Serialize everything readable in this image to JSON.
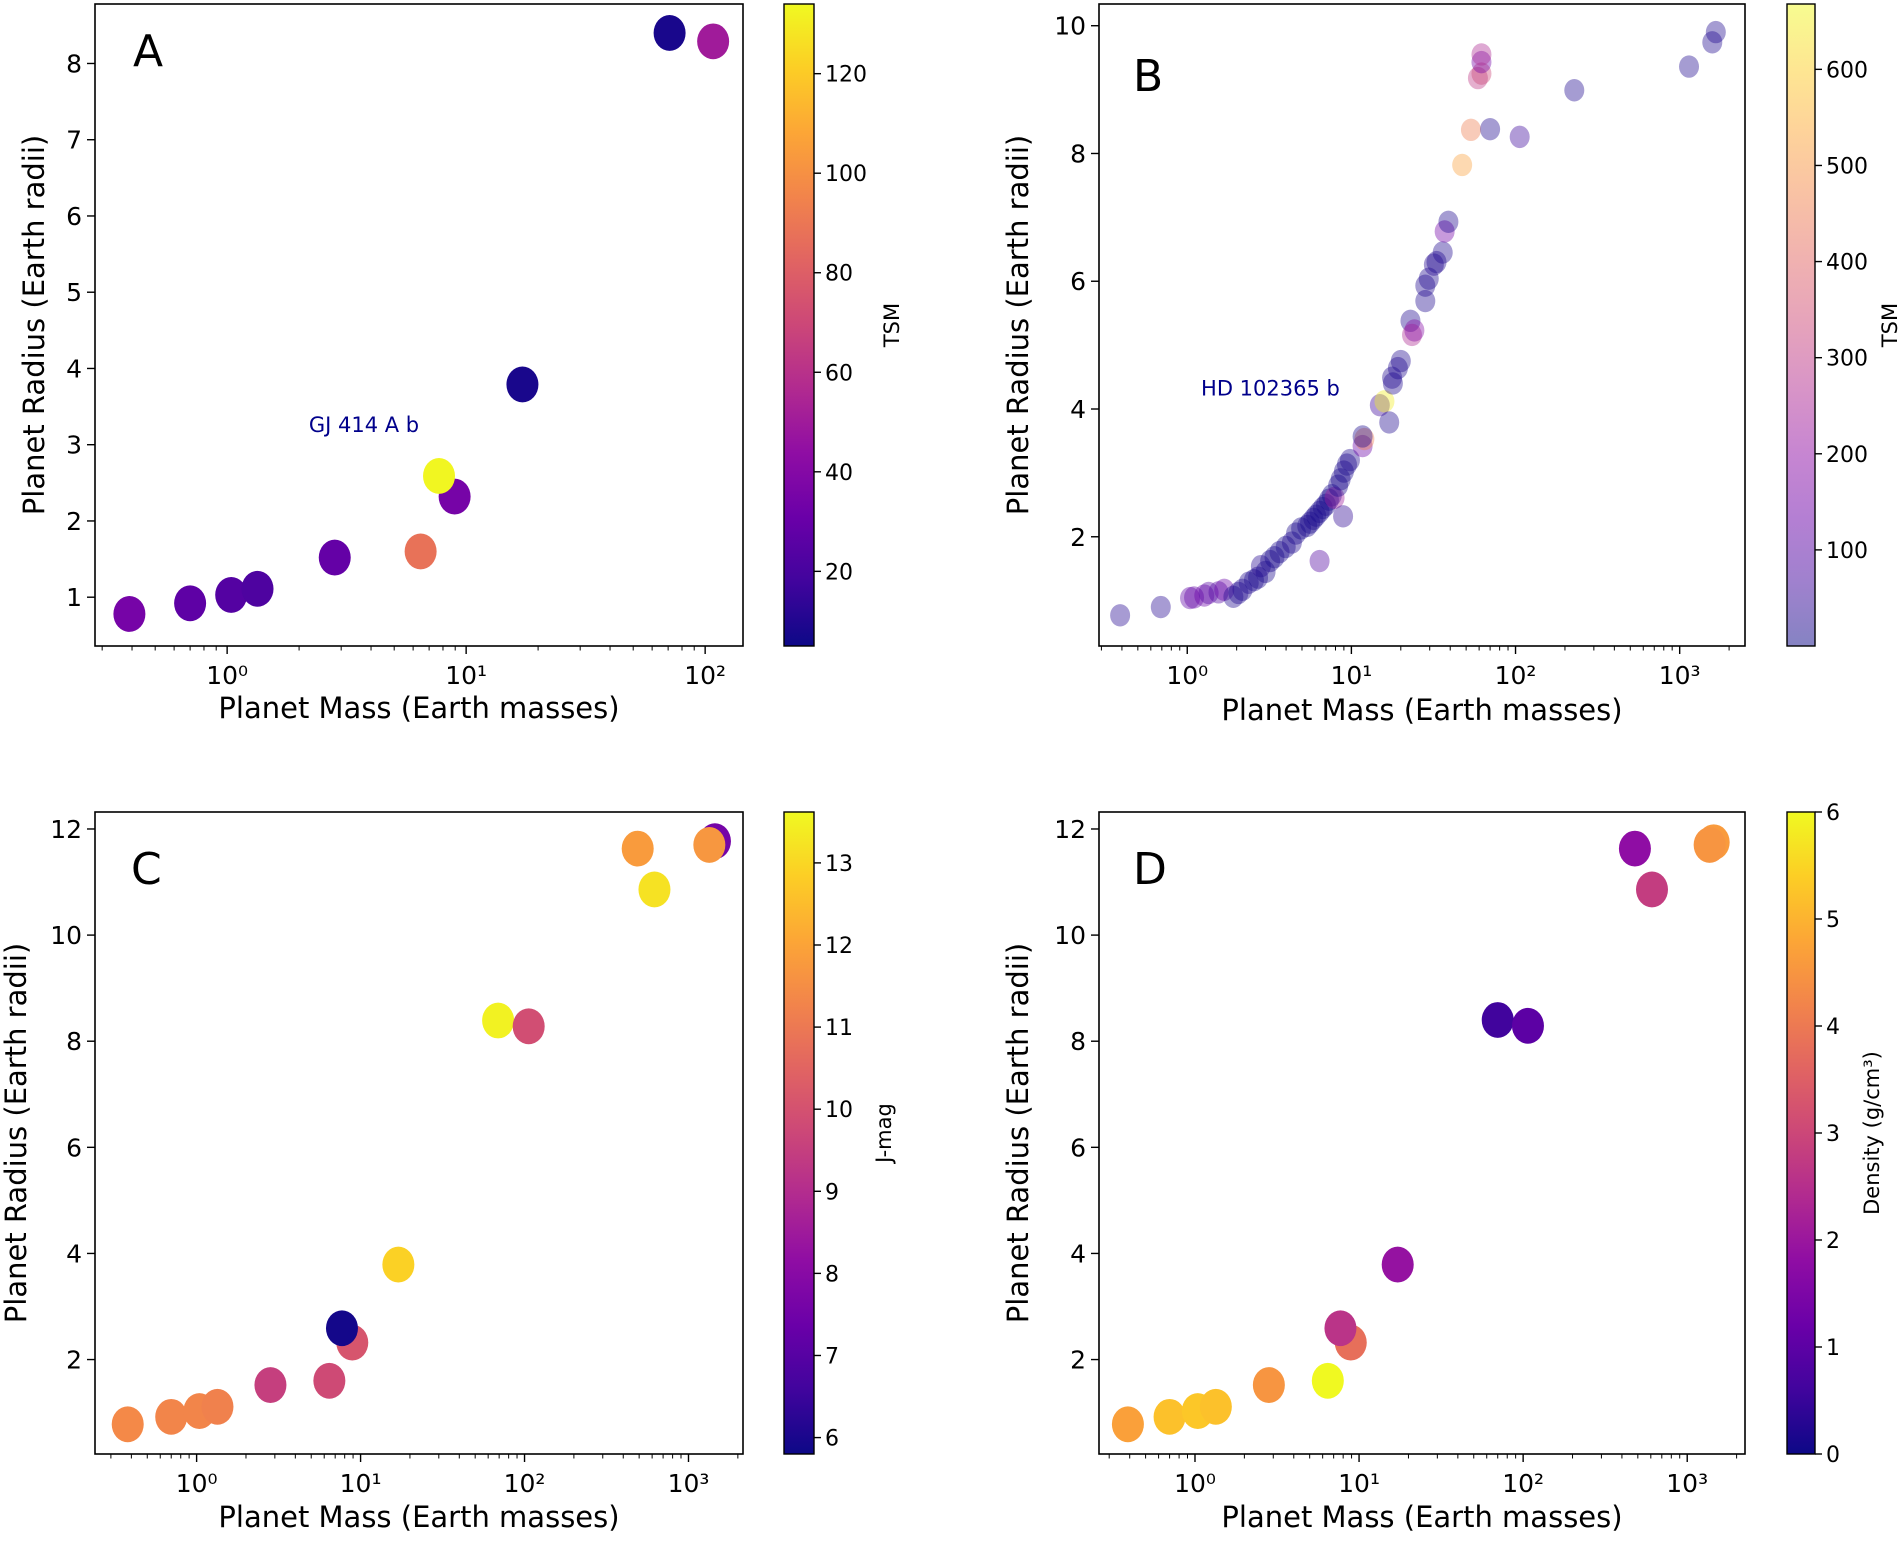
{
  "chart_data": [
    {
      "type": "scatter",
      "panel_label": "A",
      "xlabel": "Planet Mass (Earth masses)",
      "ylabel": "Planet Radius (Earth radii)",
      "xscale": "log",
      "xlim": [
        0.28,
        144
      ],
      "ylim": [
        0.36,
        8.78
      ],
      "xtick_values": [
        1,
        10,
        100
      ],
      "xtick_labels": [
        "10⁰",
        "10¹",
        "10²"
      ],
      "ytick_values": [
        1,
        2,
        3,
        4,
        5,
        6,
        7,
        8
      ],
      "ytick_labels": [
        "1",
        "2",
        "3",
        "4",
        "5",
        "6",
        "7",
        "8"
      ],
      "colorbar": {
        "label": "TSM",
        "colormap": "plasma",
        "range": [
          5,
          134
        ],
        "tick_values": [
          20,
          40,
          60,
          80,
          100,
          120
        ],
        "tick_labels": [
          "20",
          "40",
          "60",
          "80",
          "100",
          "120"
        ],
        "alpha": 1
      },
      "marker_alpha": 1,
      "points": [
        {
          "x": 0.39,
          "y": 0.78,
          "c": 35
        },
        {
          "x": 0.7,
          "y": 0.92,
          "c": 27
        },
        {
          "x": 1.04,
          "y": 1.03,
          "c": 24
        },
        {
          "x": 1.34,
          "y": 1.11,
          "c": 22
        },
        {
          "x": 2.82,
          "y": 1.52,
          "c": 29
        },
        {
          "x": 6.45,
          "y": 1.6,
          "c": 88
        },
        {
          "x": 8.95,
          "y": 2.32,
          "c": 35
        },
        {
          "x": 7.7,
          "y": 2.59,
          "c": 133
        },
        {
          "x": 17.2,
          "y": 3.79,
          "c": 8
        },
        {
          "x": 71,
          "y": 8.4,
          "c": 8
        },
        {
          "x": 108,
          "y": 8.29,
          "c": 50
        }
      ],
      "annotations": [
        {
          "text": "GJ 414 A b",
          "x": 7.7,
          "y": 2.59
        }
      ]
    },
    {
      "type": "scatter",
      "panel_label": "B",
      "xlabel": "Planet Mass (Earth masses)",
      "ylabel": "Planet Radius (Earth radii)",
      "xscale": "log",
      "xlim": [
        0.29,
        2500
      ],
      "ylim": [
        0.29,
        10.34
      ],
      "xtick_values": [
        1,
        10,
        100,
        1000
      ],
      "xtick_labels": [
        "10⁰",
        "10¹",
        "10²",
        "10³"
      ],
      "ytick_values": [
        2,
        4,
        6,
        8,
        10
      ],
      "ytick_labels": [
        "2",
        "4",
        "6",
        "8",
        "10"
      ],
      "colorbar": {
        "label": "TSM",
        "colormap": "plasma",
        "range": [
          0,
          668
        ],
        "tick_values": [
          100,
          200,
          300,
          400,
          500,
          600
        ],
        "tick_labels": [
          "100",
          "200",
          "300",
          "400",
          "500",
          "600"
        ],
        "alpha": 0.5
      },
      "marker_alpha": 0.4,
      "points": [
        {
          "x": 0.39,
          "y": 0.77,
          "c": 30
        },
        {
          "x": 0.69,
          "y": 0.9,
          "c": 30
        },
        {
          "x": 1.04,
          "y": 1.04,
          "c": 110
        },
        {
          "x": 1.1,
          "y": 1.05,
          "c": 120
        },
        {
          "x": 1.27,
          "y": 1.08,
          "c": 130
        },
        {
          "x": 1.35,
          "y": 1.12,
          "c": 100
        },
        {
          "x": 1.55,
          "y": 1.13,
          "c": 90
        },
        {
          "x": 1.68,
          "y": 1.17,
          "c": 130
        },
        {
          "x": 1.91,
          "y": 1.06,
          "c": 20
        },
        {
          "x": 2.05,
          "y": 1.12,
          "c": 20
        },
        {
          "x": 2.17,
          "y": 1.17,
          "c": 20
        },
        {
          "x": 2.37,
          "y": 1.28,
          "c": 20
        },
        {
          "x": 2.55,
          "y": 1.32,
          "c": 15
        },
        {
          "x": 2.7,
          "y": 1.36,
          "c": 15
        },
        {
          "x": 2.81,
          "y": 1.54,
          "c": 30
        },
        {
          "x": 3.0,
          "y": 1.45,
          "c": 15
        },
        {
          "x": 3.2,
          "y": 1.62,
          "c": 15
        },
        {
          "x": 3.4,
          "y": 1.68,
          "c": 12
        },
        {
          "x": 3.65,
          "y": 1.76,
          "c": 15
        },
        {
          "x": 3.98,
          "y": 1.84,
          "c": 12
        },
        {
          "x": 4.34,
          "y": 1.91,
          "c": 20
        },
        {
          "x": 4.6,
          "y": 2.05,
          "c": 15
        },
        {
          "x": 4.94,
          "y": 2.13,
          "c": 12
        },
        {
          "x": 5.38,
          "y": 2.17,
          "c": 15
        },
        {
          "x": 5.6,
          "y": 2.22,
          "c": 12
        },
        {
          "x": 5.87,
          "y": 2.28,
          "c": 15
        },
        {
          "x": 6.1,
          "y": 2.33,
          "c": 12
        },
        {
          "x": 6.4,
          "y": 2.39,
          "c": 12
        },
        {
          "x": 6.4,
          "y": 1.62,
          "c": 90
        },
        {
          "x": 6.7,
          "y": 2.45,
          "c": 12
        },
        {
          "x": 7.0,
          "y": 2.5,
          "c": 15
        },
        {
          "x": 7.3,
          "y": 2.58,
          "c": 12
        },
        {
          "x": 7.6,
          "y": 2.65,
          "c": 12
        },
        {
          "x": 7.9,
          "y": 2.61,
          "c": 230
        },
        {
          "x": 8.3,
          "y": 2.8,
          "c": 15
        },
        {
          "x": 8.6,
          "y": 2.9,
          "c": 15
        },
        {
          "x": 8.9,
          "y": 2.32,
          "c": 40
        },
        {
          "x": 9.0,
          "y": 3.02,
          "c": 15
        },
        {
          "x": 9.4,
          "y": 3.13,
          "c": 15
        },
        {
          "x": 9.8,
          "y": 3.2,
          "c": 20
        },
        {
          "x": 11.7,
          "y": 3.42,
          "c": 130
        },
        {
          "x": 12.0,
          "y": 3.53,
          "c": 450
        },
        {
          "x": 11.7,
          "y": 3.57,
          "c": 15
        },
        {
          "x": 14.9,
          "y": 4.06,
          "c": 60
        },
        {
          "x": 15.9,
          "y": 4.12,
          "c": 650
        },
        {
          "x": 17.0,
          "y": 3.79,
          "c": 20
        },
        {
          "x": 17.7,
          "y": 4.49,
          "c": 20
        },
        {
          "x": 17.9,
          "y": 4.4,
          "c": 20
        },
        {
          "x": 19.2,
          "y": 4.64,
          "c": 20
        },
        {
          "x": 20.0,
          "y": 4.75,
          "c": 20
        },
        {
          "x": 22.9,
          "y": 5.38,
          "c": 20
        },
        {
          "x": 23.4,
          "y": 5.16,
          "c": 260
        },
        {
          "x": 24.2,
          "y": 5.23,
          "c": 180
        },
        {
          "x": 28.2,
          "y": 5.69,
          "c": 20
        },
        {
          "x": 28.2,
          "y": 5.93,
          "c": 20
        },
        {
          "x": 29.6,
          "y": 6.04,
          "c": 20
        },
        {
          "x": 31.8,
          "y": 6.26,
          "c": 30
        },
        {
          "x": 33,
          "y": 6.3,
          "c": 20
        },
        {
          "x": 36,
          "y": 6.45,
          "c": 20
        },
        {
          "x": 37,
          "y": 6.78,
          "c": 150
        },
        {
          "x": 39,
          "y": 6.93,
          "c": 20
        },
        {
          "x": 47.3,
          "y": 7.82,
          "c": 520
        },
        {
          "x": 53.5,
          "y": 8.37,
          "c": 450
        },
        {
          "x": 59,
          "y": 9.18,
          "c": 300
        },
        {
          "x": 62,
          "y": 9.25,
          "c": 330
        },
        {
          "x": 62,
          "y": 9.43,
          "c": 150
        },
        {
          "x": 62,
          "y": 9.55,
          "c": 260
        },
        {
          "x": 70,
          "y": 8.38,
          "c": 20
        },
        {
          "x": 106,
          "y": 8.26,
          "c": 60
        },
        {
          "x": 228,
          "y": 8.99,
          "c": 20
        },
        {
          "x": 1140,
          "y": 9.36,
          "c": 20
        },
        {
          "x": 1580,
          "y": 9.74,
          "c": 20
        },
        {
          "x": 1660,
          "y": 9.9,
          "c": 20
        }
      ],
      "annotations": [
        {
          "text": "HD 102365 b",
          "x": 15.9,
          "y": 4.12
        }
      ]
    },
    {
      "type": "scatter",
      "panel_label": "C",
      "xlabel": "Planet Mass (Earth masses)",
      "ylabel": "Planet Radius (Earth radii)",
      "xscale": "log",
      "xlim": [
        0.24,
        2150
      ],
      "ylim": [
        0.22,
        12.32
      ],
      "xtick_values": [
        1,
        10,
        100,
        1000
      ],
      "xtick_labels": [
        "10⁰",
        "10¹",
        "10²",
        "10³"
      ],
      "ytick_values": [
        2,
        4,
        6,
        8,
        10,
        12
      ],
      "ytick_labels": [
        "2",
        "4",
        "6",
        "8",
        "10",
        "12"
      ],
      "colorbar": {
        "label": "J-mag",
        "colormap": "plasma",
        "range": [
          5.8,
          13.62
        ],
        "tick_values": [
          6,
          7,
          8,
          9,
          10,
          11,
          12,
          13
        ],
        "tick_labels": [
          "6",
          "7",
          "8",
          "9",
          "10",
          "11",
          "12",
          "13"
        ],
        "alpha": 1
      },
      "marker_alpha": 1,
      "points": [
        {
          "x": 0.38,
          "y": 0.78,
          "c": 11.4
        },
        {
          "x": 0.7,
          "y": 0.92,
          "c": 11.3
        },
        {
          "x": 1.04,
          "y": 1.03,
          "c": 11.3
        },
        {
          "x": 1.34,
          "y": 1.11,
          "c": 11.2
        },
        {
          "x": 2.82,
          "y": 1.52,
          "c": 9.5
        },
        {
          "x": 6.45,
          "y": 1.6,
          "c": 9.8
        },
        {
          "x": 8.9,
          "y": 2.32,
          "c": 10.1
        },
        {
          "x": 7.7,
          "y": 2.59,
          "c": 5.9
        },
        {
          "x": 17.0,
          "y": 3.79,
          "c": 12.9
        },
        {
          "x": 69,
          "y": 8.39,
          "c": 13.5
        },
        {
          "x": 106,
          "y": 8.28,
          "c": 9.9
        },
        {
          "x": 490,
          "y": 11.63,
          "c": 11.8
        },
        {
          "x": 620,
          "y": 10.86,
          "c": 13.2
        },
        {
          "x": 1450,
          "y": 11.77,
          "c": 7.6
        },
        {
          "x": 1340,
          "y": 11.7,
          "c": 11.7
        }
      ]
    },
    {
      "type": "scatter",
      "panel_label": "D",
      "xlabel": "Planet Mass (Earth masses)",
      "ylabel": "Planet Radius (Earth radii)",
      "xscale": "log",
      "xlim": [
        0.26,
        2250
      ],
      "ylim": [
        0.22,
        12.32
      ],
      "xtick_values": [
        1,
        10,
        100,
        1000
      ],
      "xtick_labels": [
        "10⁰",
        "10¹",
        "10²",
        "10³"
      ],
      "ytick_values": [
        2,
        4,
        6,
        8,
        10,
        12
      ],
      "ytick_labels": [
        "2",
        "4",
        "6",
        "8",
        "10",
        "12"
      ],
      "colorbar": {
        "label": "Density (g/cm³)",
        "colormap": "plasma",
        "range": [
          0,
          6
        ],
        "tick_values": [
          0,
          1,
          2,
          3,
          4,
          5,
          6
        ],
        "tick_labels": [
          "0",
          "1",
          "2",
          "3",
          "4",
          "5",
          "6"
        ],
        "alpha": 1
      },
      "marker_alpha": 1,
      "points": [
        {
          "x": 0.39,
          "y": 0.78,
          "c": 4.7
        },
        {
          "x": 0.7,
          "y": 0.92,
          "c": 5.2
        },
        {
          "x": 1.04,
          "y": 1.03,
          "c": 5.3
        },
        {
          "x": 1.34,
          "y": 1.11,
          "c": 5.2
        },
        {
          "x": 2.82,
          "y": 1.52,
          "c": 4.5
        },
        {
          "x": 6.45,
          "y": 1.6,
          "c": 6.0
        },
        {
          "x": 8.9,
          "y": 2.32,
          "c": 3.8
        },
        {
          "x": 7.7,
          "y": 2.59,
          "c": 2.6
        },
        {
          "x": 17.2,
          "y": 3.79,
          "c": 1.9
        },
        {
          "x": 70,
          "y": 8.4,
          "c": 0.6
        },
        {
          "x": 107,
          "y": 8.29,
          "c": 1.0
        },
        {
          "x": 480,
          "y": 11.63,
          "c": 1.8
        },
        {
          "x": 610,
          "y": 10.86,
          "c": 2.8
        },
        {
          "x": 1450,
          "y": 11.75,
          "c": 4.6
        },
        {
          "x": 1370,
          "y": 11.7,
          "c": 4.5
        }
      ]
    }
  ]
}
